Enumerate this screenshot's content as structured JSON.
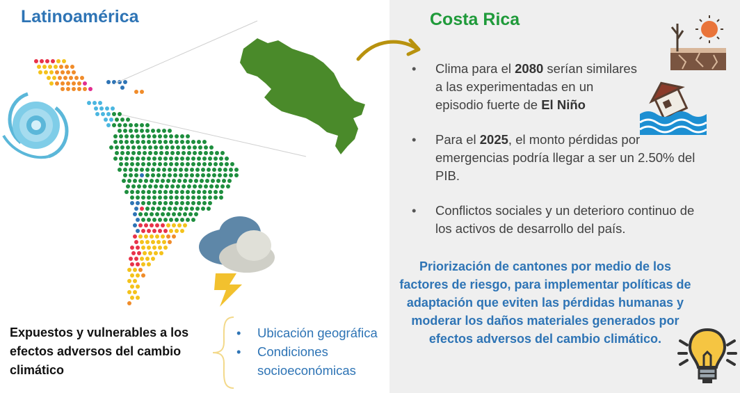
{
  "left": {
    "title": "Latinoamérica",
    "exposed_text": "Expuestos y vulnerables a los efectos adversos del cambio climático",
    "factors": [
      "Ubicación geográfica",
      "Condiciones socioeconómicas"
    ]
  },
  "right": {
    "title": "Costa Rica",
    "bullets": [
      {
        "pre": "Clima para el ",
        "bold1": "2080",
        "mid": " serían similares a las experimentadas en un episodio fuerte de ",
        "bold2": "El Niño",
        "post": ""
      },
      {
        "pre": "Para el ",
        "bold1": "2025",
        "mid": ", el monto pérdidas por emergencias podría llegar a ser un 2.50% del ",
        "bold2": "PIB",
        "post": "."
      },
      {
        "pre": "Conflictos sociales y un deterioro continuo de los activos de desarrollo del país.",
        "bold1": "",
        "mid": "",
        "bold2": "",
        "post": ""
      }
    ],
    "highlight": "Priorización de cantones por medio de los factores de riesgo, para implementar políticas de adaptación que eviten las pérdidas humanas y moderar los daños materiales generados por efectos adversos del cambio climático."
  },
  "icons": [
    "hurricane-icon",
    "storm-cloud-icon",
    "drought-icon",
    "flood-house-icon",
    "lightbulb-icon"
  ],
  "colors": {
    "blue": "#2e74b5",
    "green": "#1f9a3a",
    "map_green": "#4a8a2a",
    "gray_panel": "#efefef"
  }
}
